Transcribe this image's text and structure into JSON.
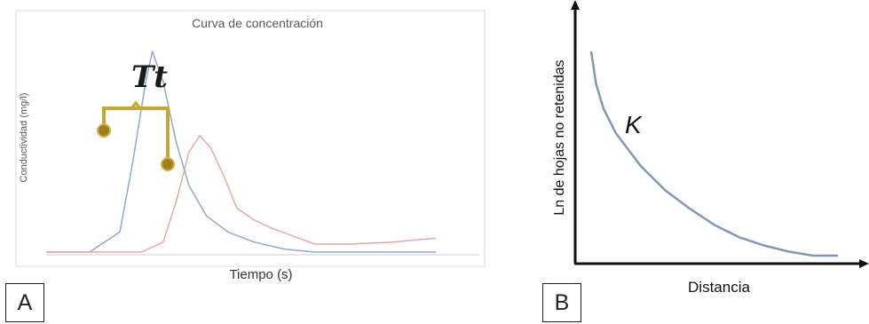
{
  "chart_data": [
    {
      "type": "line",
      "panel": "A",
      "title": "Curva de concentración",
      "xlabel": "Tiempo (s)",
      "ylabel": "Conductividad (mg/l)",
      "annotation": "Tt",
      "grid": false,
      "series": [
        {
          "color": "#8fa9d3",
          "points": [
            [
              0,
              0.0
            ],
            [
              0.1,
              0.0
            ],
            [
              0.17,
              0.1
            ],
            [
              0.2,
              0.45
            ],
            [
              0.23,
              0.85
            ],
            [
              0.245,
              1.0
            ],
            [
              0.27,
              0.85
            ],
            [
              0.3,
              0.55
            ],
            [
              0.33,
              0.33
            ],
            [
              0.37,
              0.18
            ],
            [
              0.42,
              0.1
            ],
            [
              0.48,
              0.05
            ],
            [
              0.55,
              0.015
            ],
            [
              0.62,
              0.0
            ],
            [
              0.9,
              0.0
            ]
          ]
        },
        {
          "color": "#e8a8a8",
          "points": [
            [
              0,
              0.0
            ],
            [
              0.22,
              0.0
            ],
            [
              0.27,
              0.05
            ],
            [
              0.3,
              0.25
            ],
            [
              0.33,
              0.5
            ],
            [
              0.355,
              0.58
            ],
            [
              0.38,
              0.52
            ],
            [
              0.41,
              0.38
            ],
            [
              0.44,
              0.22
            ],
            [
              0.48,
              0.16
            ],
            [
              0.52,
              0.12
            ],
            [
              0.57,
              0.08
            ],
            [
              0.62,
              0.04
            ],
            [
              0.7,
              0.04
            ],
            [
              0.8,
              0.05
            ],
            [
              0.9,
              0.07
            ]
          ]
        }
      ]
    },
    {
      "type": "line",
      "panel": "B",
      "xlabel": "Distancia",
      "ylabel": "Ln de hojas no retenidas",
      "annotation": "K",
      "series": [
        {
          "color": "#7f97b8",
          "points": [
            [
              0.0,
              1.0
            ],
            [
              0.02,
              0.84
            ],
            [
              0.05,
              0.72
            ],
            [
              0.1,
              0.6
            ],
            [
              0.2,
              0.44
            ],
            [
              0.3,
              0.32
            ],
            [
              0.4,
              0.23
            ],
            [
              0.5,
              0.15
            ],
            [
              0.6,
              0.09
            ],
            [
              0.7,
              0.05
            ],
            [
              0.8,
              0.02
            ],
            [
              0.9,
              0.0
            ],
            [
              1.0,
              0.0
            ]
          ]
        }
      ]
    }
  ],
  "labels": {
    "a": "A",
    "b": "B"
  }
}
